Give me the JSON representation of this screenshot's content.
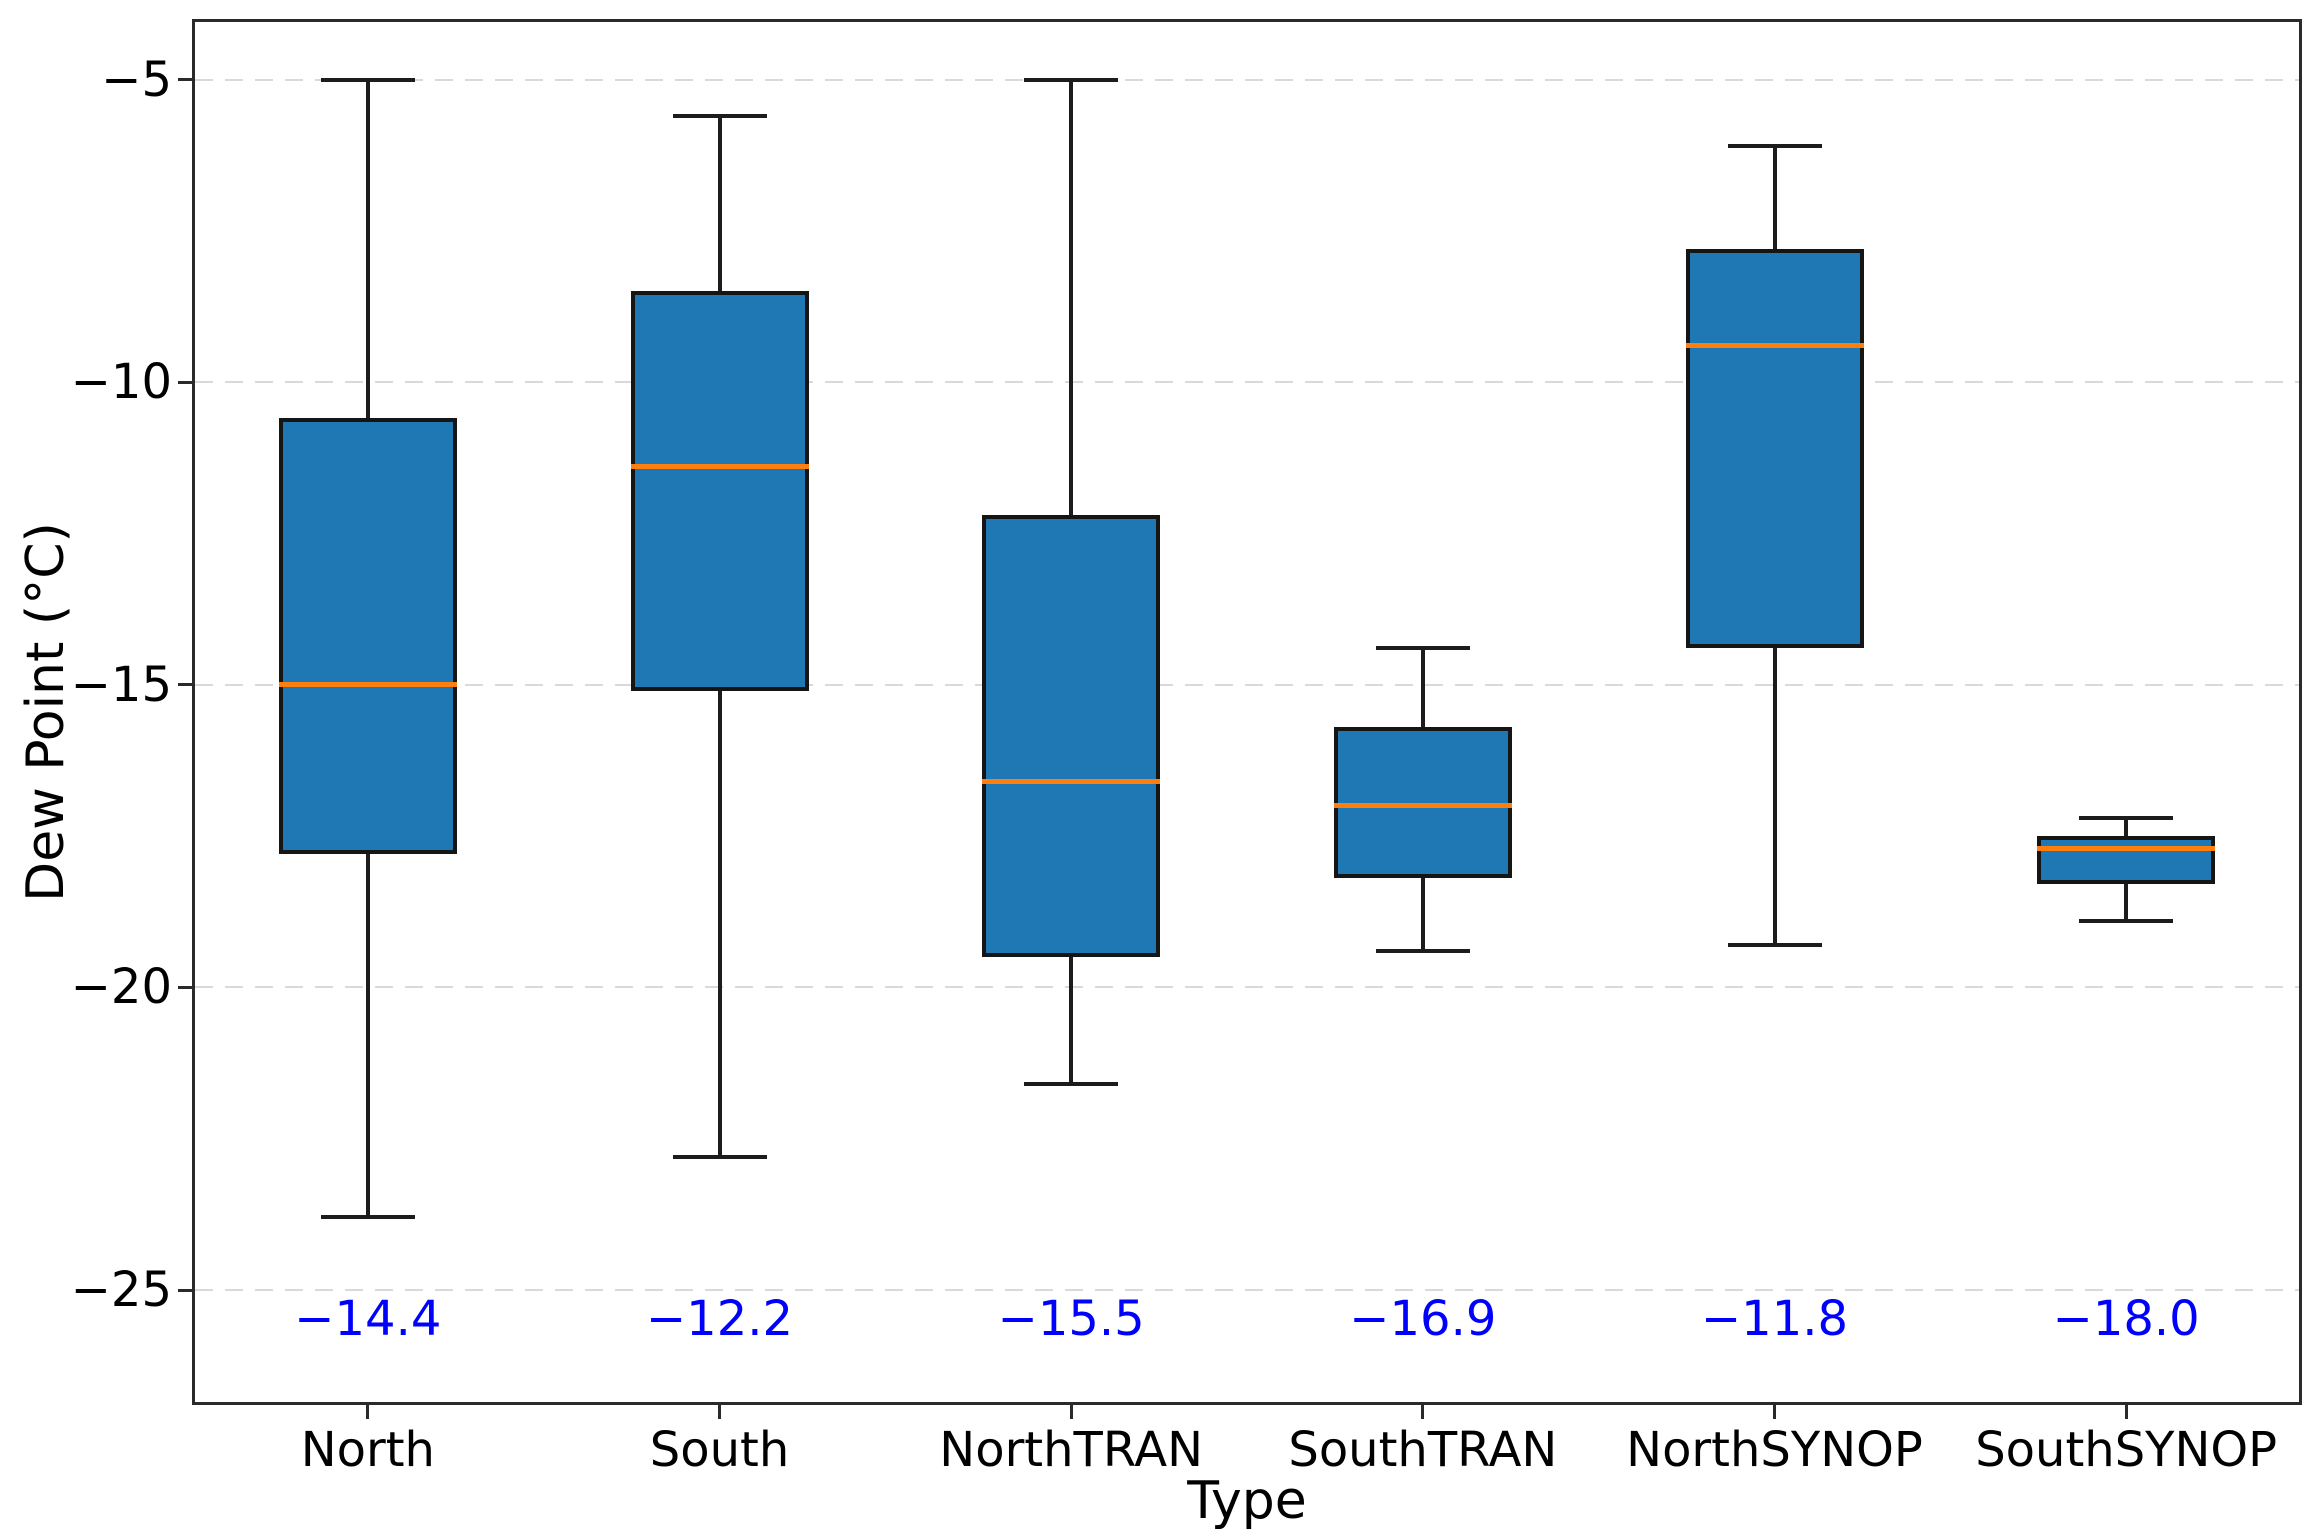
{
  "figure": {
    "background": "#ffffff"
  },
  "chart_data": {
    "type": "box",
    "title": "",
    "xlabel": "Type",
    "ylabel": "Dew Point (°C)",
    "categories": [
      "North",
      "South",
      "NorthTRAN",
      "SouthTRAN",
      "NorthSYNOP",
      "SouthSYNOP"
    ],
    "series": [
      {
        "name": "North",
        "whisker_low": -23.8,
        "q1": -17.8,
        "median": -15.0,
        "q3": -10.6,
        "whisker_high": -5.0,
        "mean_label": "−14.4"
      },
      {
        "name": "South",
        "whisker_low": -22.8,
        "q1": -15.1,
        "median": -11.4,
        "q3": -8.5,
        "whisker_high": -5.6,
        "mean_label": "−12.2"
      },
      {
        "name": "NorthTRAN",
        "whisker_low": -21.6,
        "q1": -19.5,
        "median": -16.6,
        "q3": -12.2,
        "whisker_high": -5.0,
        "mean_label": "−15.5"
      },
      {
        "name": "SouthTRAN",
        "whisker_low": -19.4,
        "q1": -18.2,
        "median": -17.0,
        "q3": -15.7,
        "whisker_high": -14.4,
        "mean_label": "−16.9"
      },
      {
        "name": "NorthSYNOP",
        "whisker_low": -19.3,
        "q1": -14.4,
        "median": -9.4,
        "q3": -7.8,
        "whisker_high": -6.1,
        "mean_label": "−11.8"
      },
      {
        "name": "SouthSYNOP",
        "whisker_low": -18.9,
        "q1": -18.3,
        "median": -17.7,
        "q3": -17.5,
        "whisker_high": -17.2,
        "mean_label": "−18.0"
      }
    ],
    "yticks": [
      {
        "label": "−5",
        "value": -5
      },
      {
        "label": "−10",
        "value": -10
      },
      {
        "label": "−15",
        "value": -15
      },
      {
        "label": "−20",
        "value": -20
      },
      {
        "label": "−25",
        "value": -25
      }
    ],
    "ylim": [
      -26.9,
      -4.0
    ],
    "grid": "horizontal-dashed",
    "legend": "none",
    "colors": {
      "box_fill": "#1f77b4",
      "box_edge": "#151515",
      "whisker": "#1c1c1c",
      "median": "#ff7f0e",
      "mean_text": "#0000ff",
      "gridline": "#d9d9d9",
      "axis_text": "#000000",
      "spine": "#2a2a2a"
    }
  }
}
